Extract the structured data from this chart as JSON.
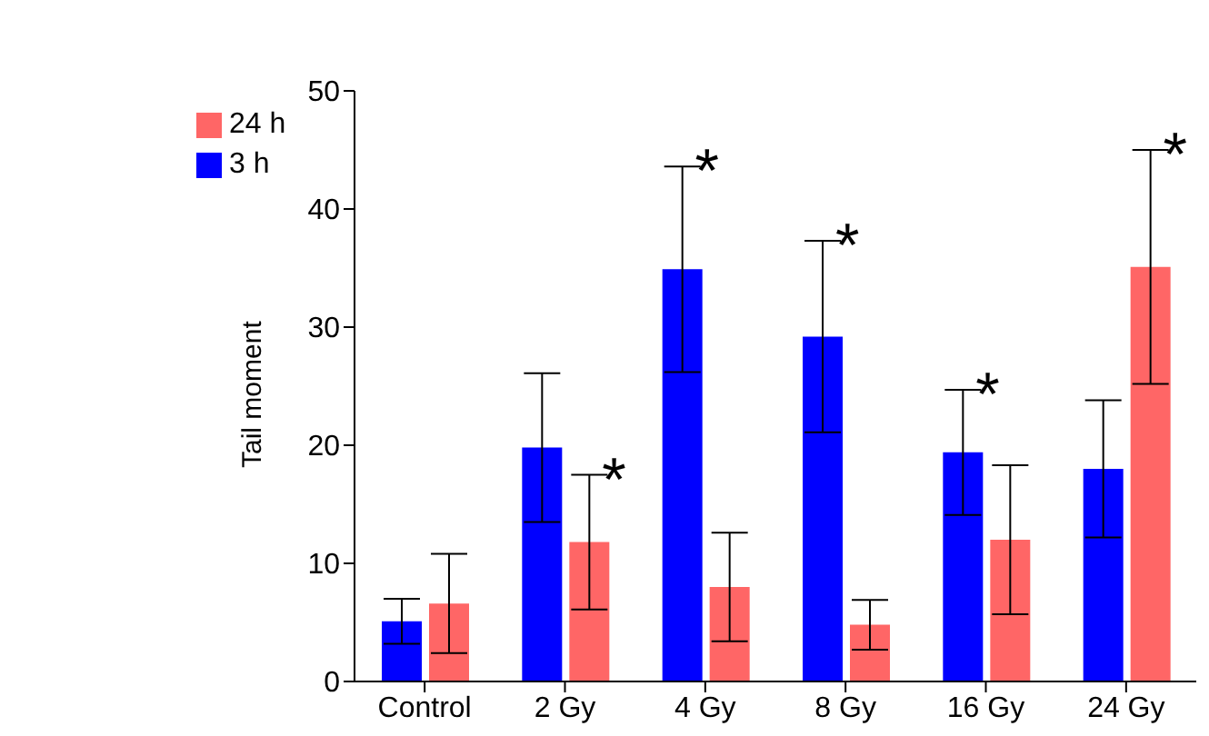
{
  "chart_data": {
    "type": "bar",
    "ylabel": "Tail moment",
    "categories": [
      "Control",
      "2 Gy",
      "4 Gy",
      "8 Gy",
      "16 Gy",
      "24 Gy"
    ],
    "series": [
      {
        "name": "3 h",
        "color": "#0000ff",
        "values": [
          5.1,
          19.8,
          34.9,
          29.2,
          19.4,
          18.0
        ],
        "errors": [
          1.9,
          6.3,
          8.7,
          8.1,
          5.3,
          5.8
        ]
      },
      {
        "name": "24 h",
        "color": "#ff6666",
        "values": [
          6.6,
          11.8,
          8.0,
          4.8,
          12.0,
          35.1
        ],
        "errors": [
          4.2,
          5.7,
          4.6,
          2.1,
          6.3,
          9.9
        ]
      }
    ],
    "ylim": [
      0,
      50
    ],
    "yticks": [
      0,
      10,
      20,
      30,
      40,
      50
    ],
    "grid": false,
    "legend": "top left",
    "annotations": [
      {
        "text": "*",
        "x": "2 Gy",
        "y": 17.5
      },
      {
        "text": "*",
        "x": "4 Gy",
        "y": 43.6
      },
      {
        "text": "*",
        "x": "8 Gy",
        "y": 37.3
      },
      {
        "text": "*",
        "x": "16 Gy",
        "y": 24.7
      },
      {
        "text": "*",
        "x": "24 Gy",
        "y": 45.0
      }
    ]
  }
}
